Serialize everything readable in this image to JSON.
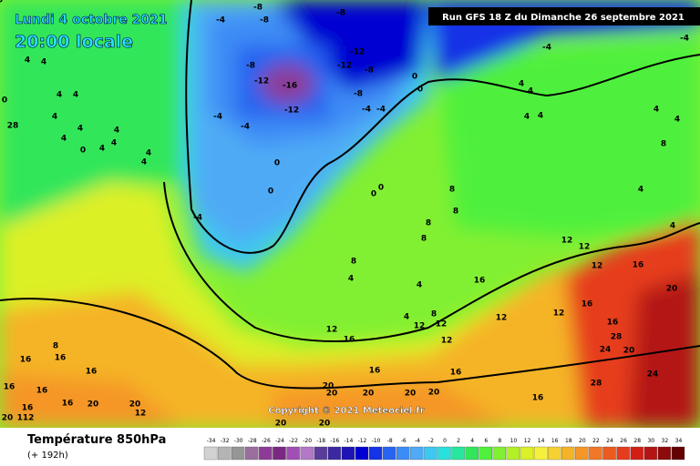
{
  "header": {
    "title": "Lundi 4 octobre 2021",
    "time": "20:00 locale",
    "run": "Run GFS 18 Z du Dimanche 26 septembre 2021"
  },
  "map": {
    "copyright": "Copyright © 2021 Meteociel.fr",
    "labels": [
      -8,
      -8,
      -4,
      -8,
      -12,
      -12,
      -8,
      -8,
      -12,
      -16,
      -12,
      -8,
      -4,
      -4,
      -4,
      -4,
      0,
      0,
      -4,
      0,
      0,
      0,
      0,
      -4,
      -4,
      4,
      4,
      4,
      4,
      4,
      4,
      4,
      8,
      4,
      8,
      8,
      8,
      8,
      8,
      4,
      4,
      4,
      8,
      12,
      12,
      16,
      12,
      12,
      12,
      12,
      12,
      12,
      16,
      16,
      16,
      20,
      28,
      24,
      20,
      24,
      28,
      16,
      16,
      16,
      16,
      12,
      8,
      16,
      16,
      16,
      16,
      16,
      16,
      16,
      20,
      20,
      12,
      112,
      20,
      20,
      20,
      20,
      20,
      20,
      20,
      20,
      28,
      0,
      4,
      4,
      4,
      4,
      0,
      4,
      4,
      4,
      4,
      4,
      4,
      4,
      4,
      0
    ]
  },
  "legend": {
    "title": "Température 850hPa",
    "lead": "(+ 192h)",
    "values": [
      -34,
      -32,
      -30,
      -28,
      -26,
      -24,
      -22,
      -20,
      -18,
      -16,
      -14,
      -12,
      -10,
      -8,
      -6,
      -4,
      -2,
      0,
      2,
      4,
      6,
      8,
      10,
      12,
      14,
      16,
      18,
      20,
      22,
      24,
      26,
      28,
      30,
      32,
      34
    ],
    "colors": [
      "#d2d2d2",
      "#b4b4b4",
      "#969696",
      "#9b6ea0",
      "#8c3c96",
      "#7a2882",
      "#a050b4",
      "#b478c8",
      "#5a3c9b",
      "#3c28a0",
      "#1e14b4",
      "#0000d2",
      "#1432e6",
      "#2864f0",
      "#3c8cf5",
      "#50aaf5",
      "#3cc8f0",
      "#28e1dc",
      "#28e6a0",
      "#32e65a",
      "#50f03c",
      "#82f032",
      "#b4f028",
      "#dcf028",
      "#f5f03c",
      "#f5d232",
      "#f5b428",
      "#f59628",
      "#f07828",
      "#eb5a1e",
      "#e63c1e",
      "#d21e14",
      "#b41414",
      "#8c0a0a",
      "#640000"
    ]
  }
}
